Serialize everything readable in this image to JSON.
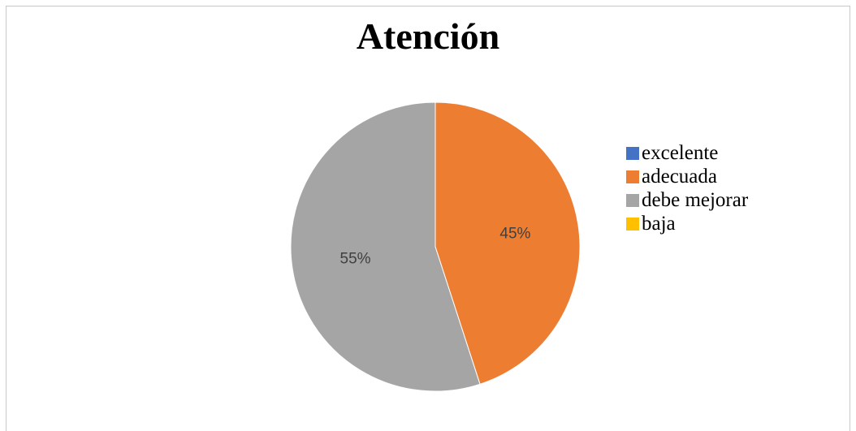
{
  "chart_data": {
    "type": "pie",
    "title": "Atención",
    "categories": [
      "excelente",
      "adecuada",
      "debe mejorar",
      "baja"
    ],
    "values": [
      0,
      45,
      55,
      0
    ],
    "value_labels": [
      "",
      "45%",
      "55%",
      ""
    ],
    "colors": [
      "#4472c4",
      "#ed7d31",
      "#a5a5a5",
      "#ffc000"
    ],
    "legend_position": "right"
  }
}
